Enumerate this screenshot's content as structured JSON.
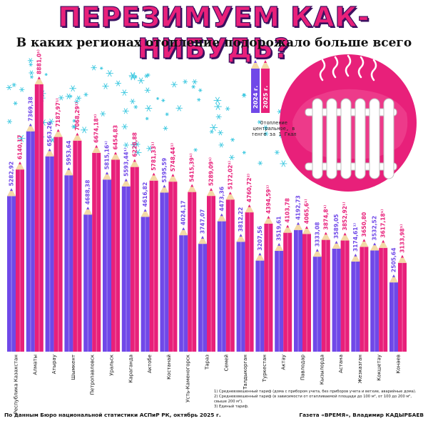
{
  "title": "ПЕРЕЗИМУЕМ КАК-НИБУДЬ?",
  "subtitle": "В каких регионах отопление подорожало больше всего",
  "legend": {
    "series_2024": "2024 г.",
    "series_2025": "2025 г.",
    "label": "Отопление центральное, в тенге за 1 Гкал"
  },
  "notes": [
    "1) Средневзвешенный тариф (дома с прибором учета, без приборов учета и ветхие, аварийные дома).",
    "2) Средневзвешенный тариф (в зависимости от отапливаемой площади до 100 м², от 100 до 200 м², свыше 200 м²).",
    "3) Единый тариф."
  ],
  "footer": {
    "source": "По данным Бюро национальной статистики АСПиР РК, октябрь 2025 г.",
    "credit": "Газета «ВРЕМЯ», Владимир КАДЫРБАЕВ"
  },
  "colors": {
    "pencil_2024": "#7048e8",
    "pencil_2025": "#e8207a",
    "snow": "#3cc8e0",
    "radiator_bg": "#e8207a",
    "title": "#e8207a"
  },
  "chart_data": {
    "type": "bar",
    "categories": [
      "Республика Казахстан",
      "Алматы",
      "Атырау",
      "Шымкент",
      "Петропавловск",
      "Уральск",
      "Караганда",
      "Актобе",
      "Костанай",
      "Усть-Каменогорск",
      "Тараз",
      "Семей",
      "Талдыкорган",
      "Туркестан",
      "Актау",
      "Павлодар",
      "Кызылорда",
      "Астана",
      "Жезказган",
      "Кокшетау",
      "Конаев"
    ],
    "series": [
      {
        "name": "2024 г.",
        "values": [
          5282.92,
          7369.38,
          6563.26,
          5953.64,
          4688.38,
          5815.16,
          5593.44,
          4616.82,
          5395.59,
          4024.17,
          3747.07,
          4473.36,
          3812.22,
          3207.56,
          3519.61,
          4192.73,
          3333.08,
          3589.05,
          3174.61,
          3532.52,
          2505.64
        ]
      },
      {
        "name": "2025 г.",
        "values": [
          6140.17,
          8881.0,
          7187.97,
          7068.29,
          6674.18,
          6454.83,
          6220.88,
          5781.33,
          5748.44,
          5415.39,
          5289.09,
          5172.02,
          4760.72,
          4394.59,
          4103.78,
          4065.6,
          3874.8,
          3852.92,
          3650.8,
          3617.18,
          3133.98
        ]
      }
    ],
    "labels_2024": [
      "5282,92",
      "7369,38",
      "6563,26",
      "5953,64",
      "4688,38",
      "5815,16¹⁾",
      "5593,44¹⁾",
      "4616,82",
      "5395,59",
      "4024,17",
      "3747,07",
      "4473,36",
      "3812,22",
      "3207,56",
      "3519,61",
      "4192,73",
      "3333,08",
      "3589,05",
      "3174,61¹⁾",
      "3532,52",
      "2505,64"
    ],
    "labels_2025": [
      "6140,17",
      "8881,0¹⁾",
      "7187,97¹⁾",
      "7068,29¹⁾",
      "6674,18³⁾",
      "6454,83",
      "6220,88",
      "5781,33¹⁾",
      "5748,44¹⁾",
      "5415,39¹⁾",
      "5289,09¹⁾",
      "5172,02¹⁾",
      "4760,72²⁾",
      "4394,59¹⁾",
      "4103,78",
      "4065,6¹⁾",
      "3874,8¹⁾",
      "3852,92¹⁾",
      "3650,80",
      "3617,18¹⁾",
      "3133,98¹⁾"
    ],
    "ylim": [
      0,
      9000
    ]
  }
}
